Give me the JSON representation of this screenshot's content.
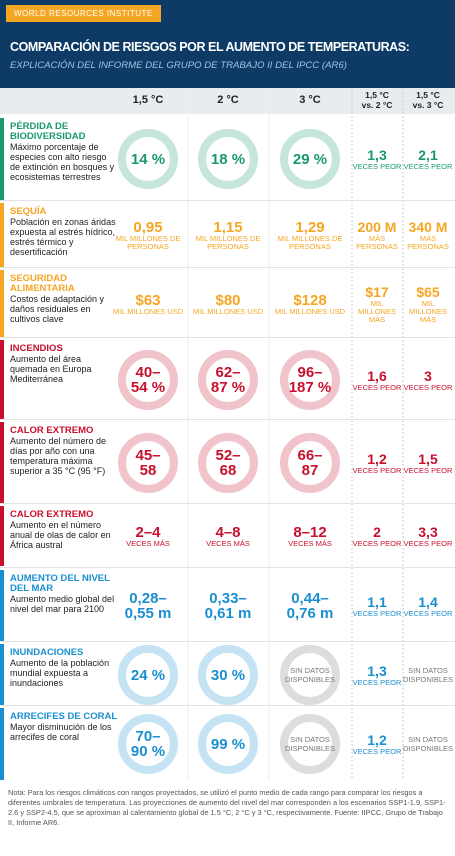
{
  "header": {
    "org": "WORLD RESOURCES INSTITUTE",
    "title": "COMPARACIÓN DE RIESGOS POR EL AUMENTO DE TEMPERATURAS:",
    "subtitle": "EXPLICACIÓN DEL INFORME DEL GRUPO DE TRABAJO II DEL IPCC (AR6)"
  },
  "columns": [
    {
      "label": "1,5 °C"
    },
    {
      "label": "2 °C"
    },
    {
      "label": "3 °C"
    },
    {
      "label": "1,5 °C",
      "sub": "vs. 2 °C"
    },
    {
      "label": "1,5 °C",
      "sub": "vs. 3 °C"
    }
  ],
  "rows": [
    {
      "title": "PÉRDIDA DE BIODIVERSIDAD",
      "desc": "Máximo porcentaje de especies con alto riesgo de extinción en bosques y ecosistemas terrestres",
      "color": "#1a9a6a",
      "icon": "ring",
      "cells": [
        {
          "lines": [
            "14 %"
          ]
        },
        {
          "lines": [
            "18 %"
          ]
        },
        {
          "lines": [
            "29 %"
          ]
        }
      ],
      "comps": [
        {
          "lines": [
            "1,3"
          ],
          "unit": "VECES PEOR"
        },
        {
          "lines": [
            "2,1"
          ],
          "unit": "VECES PEOR"
        }
      ]
    },
    {
      "title": "SEQUÍA",
      "desc": "Población en zonas áridas expuesta al estrés hídrico, estrés térmico y desertificación",
      "color": "#f5a623",
      "icon": "none",
      "cells": [
        {
          "lines": [
            "0,95"
          ],
          "unit": "MIL MILLONES DE PERSONAS"
        },
        {
          "lines": [
            "1,15"
          ],
          "unit": "MIL MILLONES DE PERSONAS"
        },
        {
          "lines": [
            "1,29"
          ],
          "unit": "MIL MILLONES DE PERSONAS"
        }
      ],
      "comps": [
        {
          "lines": [
            "200 M"
          ],
          "unit": "MÁS PERSONAS"
        },
        {
          "lines": [
            "340 M"
          ],
          "unit": "MÁS PERSONAS"
        }
      ]
    },
    {
      "title": "SEGURIDAD ALIMENTARIA",
      "desc": "Costos de adaptación y daños residuales en cultivos clave",
      "color": "#f5a623",
      "icon": "none",
      "cells": [
        {
          "lines": [
            "$63"
          ],
          "unit": "MIL MILLONES USD"
        },
        {
          "lines": [
            "$80"
          ],
          "unit": "MIL MILLONES USD"
        },
        {
          "lines": [
            "$128"
          ],
          "unit": "MIL MILLONES USD"
        }
      ],
      "comps": [
        {
          "lines": [
            "$17"
          ],
          "unit": "MIL MILLONES MÁS"
        },
        {
          "lines": [
            "$65"
          ],
          "unit": "MIL MILLONES MÁS"
        }
      ]
    },
    {
      "title": "INCENDIOS",
      "desc": "Aumento del área quemada en Europa Mediterránea",
      "color": "#c8102e",
      "icon": "ring",
      "cells": [
        {
          "lines": [
            "40–",
            "54 %"
          ]
        },
        {
          "lines": [
            "62–",
            "87 %"
          ]
        },
        {
          "lines": [
            "96–",
            "187 %"
          ]
        }
      ],
      "comps": [
        {
          "lines": [
            "1,6"
          ],
          "unit": "VECES PEOR"
        },
        {
          "lines": [
            "3"
          ],
          "unit": "VECES PEOR"
        }
      ]
    },
    {
      "title": "CALOR EXTREMO",
      "desc": "Aumento del número de días por año con una temperatura máxima superior a 35 °C (95 °F)",
      "color": "#c8102e",
      "icon": "ring",
      "cells": [
        {
          "lines": [
            "45–",
            "58"
          ]
        },
        {
          "lines": [
            "52–",
            "68"
          ]
        },
        {
          "lines": [
            "66–",
            "87"
          ]
        }
      ],
      "comps": [
        {
          "lines": [
            "1,2"
          ],
          "unit": "VECES PEOR"
        },
        {
          "lines": [
            "1,5"
          ],
          "unit": "VECES PEOR"
        }
      ]
    },
    {
      "title": "CALOR EXTREMO",
      "desc": "Aumento en el número anual de olas de calor en África austral",
      "color": "#c8102e",
      "icon": "none",
      "cells": [
        {
          "lines": [
            "2–4"
          ],
          "unit": "VECES MÁS"
        },
        {
          "lines": [
            "4–8"
          ],
          "unit": "VECES MÁS"
        },
        {
          "lines": [
            "8–12"
          ],
          "unit": "VECES MÁS"
        }
      ],
      "comps": [
        {
          "lines": [
            "2"
          ],
          "unit": "VECES PEOR"
        },
        {
          "lines": [
            "3,3"
          ],
          "unit": "VECES PEOR"
        }
      ]
    },
    {
      "title": "AUMENTO DEL NIVEL DEL MAR",
      "desc": "Aumento medio global del nivel del mar para 2100",
      "color": "#1a8fd0",
      "icon": "none",
      "cells": [
        {
          "lines": [
            "0,28–",
            "0,55 m"
          ]
        },
        {
          "lines": [
            "0,33–",
            "0,61 m"
          ]
        },
        {
          "lines": [
            "0,44–",
            "0,76 m"
          ]
        }
      ],
      "comps": [
        {
          "lines": [
            "1,1"
          ],
          "unit": "VECES PEOR"
        },
        {
          "lines": [
            "1,4"
          ],
          "unit": "VECES PEOR"
        }
      ]
    },
    {
      "title": "INUNDACIONES",
      "desc": "Aumento de la población mundial expuesta a inundaciones",
      "color": "#1a8fd0",
      "icon": "ring",
      "cells": [
        {
          "lines": [
            "24 %"
          ]
        },
        {
          "lines": [
            "30 %"
          ]
        },
        {
          "lines": [
            "SIN DATOS DISPONIBLES"
          ],
          "color": "#777777"
        }
      ],
      "comps": [
        {
          "lines": [
            "1,3"
          ],
          "unit": "VECES PEOR"
        },
        {
          "lines": [
            "SIN DATOS DISPONIBLES"
          ],
          "color": "#777777"
        }
      ]
    },
    {
      "title": "ARRECIFES DE CORAL",
      "desc": "Mayor disminución de los arrecifes de coral",
      "color": "#1a8fd0",
      "icon": "ring",
      "cells": [
        {
          "lines": [
            "70–",
            "90 %"
          ]
        },
        {
          "lines": [
            "99 %"
          ]
        },
        {
          "lines": [
            "SIN DATOS DISPONIBLES"
          ],
          "color": "#777777"
        }
      ],
      "comps": [
        {
          "lines": [
            "1,2"
          ],
          "unit": "VECES PEOR"
        },
        {
          "lines": [
            "SIN DATOS DISPONIBLES"
          ],
          "color": "#777777"
        }
      ]
    }
  ],
  "note": "Nota: Para los riesgos climáticos con rangos proyectados, se utilizó el punto medio de cada rango para comparar los riesgos a diferentes umbrales de temperatura. Las proyecciones de aumento del nivel del mar corresponden a los escenarios SSP1-1.9, SSP1-2.6 y SSP2-4.5, que se aproximan al calentamiento global de 1.5 °C, 2 °C y 3 °C, respectivamente. Fuente: IIPCC, Grupo de Trabajo II, Informe AR6."
}
